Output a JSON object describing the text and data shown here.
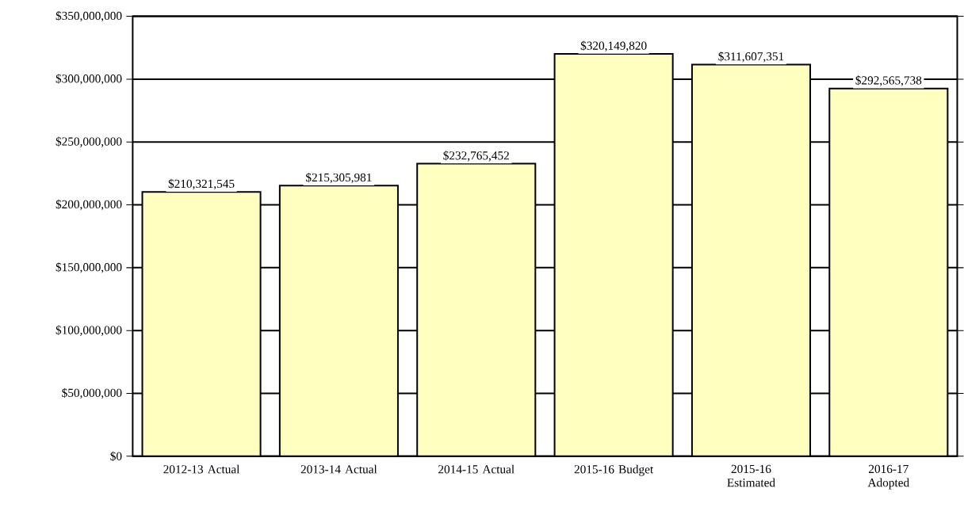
{
  "chart_data": {
    "type": "bar",
    "categories": [
      "2012-13 Actual",
      "2013-14 Actual",
      "2014-15 Actual",
      "2015-16 Budget",
      "2015-16 Estimated",
      "2016-17 Adopted"
    ],
    "values": [
      210321545,
      215305981,
      232765452,
      320149820,
      311607351,
      292565738
    ],
    "value_labels": [
      "$210,321,545",
      "$215,305,981",
      "$232,765,452",
      "$320,149,820",
      "$311,607,351",
      "$292,565,738"
    ],
    "color": "#ffffc0",
    "ylim": [
      0,
      350000000
    ],
    "yticks": [
      {
        "value": 0,
        "label": "$0"
      },
      {
        "value": 50000000,
        "label": "$50,000,000"
      },
      {
        "value": 100000000,
        "label": "$100,000,000"
      },
      {
        "value": 150000000,
        "label": "$150,000,000"
      },
      {
        "value": 200000000,
        "label": "$200,000,000"
      },
      {
        "value": 250000000,
        "label": "$250,000,000"
      },
      {
        "value": 300000000,
        "label": "$300,000,000"
      },
      {
        "value": 350000000,
        "label": "$350,000,000"
      }
    ],
    "grid": "y"
  }
}
